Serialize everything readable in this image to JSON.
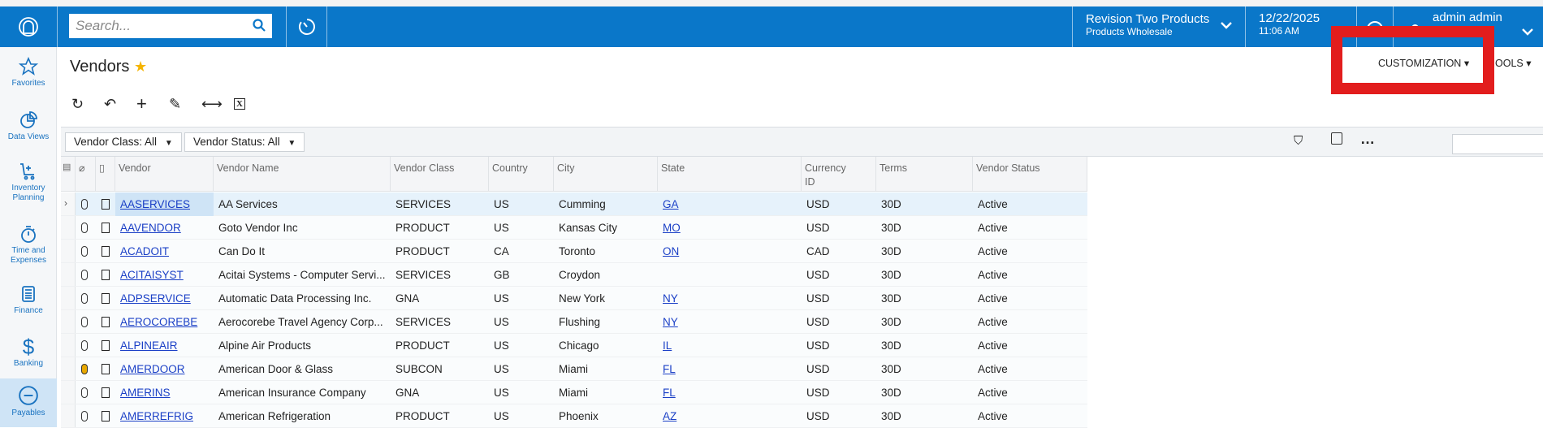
{
  "topbar": {
    "search_placeholder": "Search...",
    "company": "Revision Two Products",
    "branch": "Products Wholesale",
    "date": "12/22/2025",
    "time": "11:06 AM",
    "user": "admin admin"
  },
  "sidebar": {
    "items": [
      {
        "label": "Favorites",
        "icon": "star-icon"
      },
      {
        "label": "Data Views",
        "icon": "pie-chart-icon"
      },
      {
        "label": "Inventory Planning",
        "icon": "cart-icon"
      },
      {
        "label": "Time and Expenses",
        "icon": "stopwatch-icon"
      },
      {
        "label": "Finance",
        "icon": "calculator-icon"
      },
      {
        "label": "Banking",
        "icon": "dollar-icon"
      },
      {
        "label": "Payables",
        "icon": "minus-circle-icon"
      }
    ],
    "active": "Payables"
  },
  "page": {
    "title": "Vendors",
    "customization": "CUSTOMIZATION",
    "tools": "OOLS"
  },
  "filters": {
    "vendor_class": "Vendor Class: All",
    "vendor_status": "Vendor Status: All"
  },
  "grid": {
    "columns": [
      "Vendor",
      "Vendor Name",
      "Vendor Class",
      "Country",
      "City",
      "State",
      "Currency ID",
      "Terms",
      "Vendor Status"
    ],
    "rows": [
      [
        "AASERVICES",
        "AA Services",
        "SERVICES",
        "US",
        "Cumming",
        "GA",
        "USD",
        "30D",
        "Active"
      ],
      [
        "AAVENDOR",
        "Goto Vendor Inc",
        "PRODUCT",
        "US",
        "Kansas City",
        "MO",
        "USD",
        "30D",
        "Active"
      ],
      [
        "ACADOIT",
        "Can Do It",
        "PRODUCT",
        "CA",
        "Toronto",
        "ON",
        "CAD",
        "30D",
        "Active"
      ],
      [
        "ACITAISYST",
        "Acitai Systems - Computer Servi...",
        "SERVICES",
        "GB",
        "Croydon",
        "",
        "USD",
        "30D",
        "Active"
      ],
      [
        "ADPSERVICE",
        "Automatic Data Processing Inc.",
        "GNA",
        "US",
        "New York",
        "NY",
        "USD",
        "30D",
        "Active"
      ],
      [
        "AEROCOREBE",
        "Aerocorebe Travel Agency Corp...",
        "SERVICES",
        "US",
        "Flushing",
        "NY",
        "USD",
        "30D",
        "Active"
      ],
      [
        "ALPINEAIR",
        "Alpine Air Products",
        "PRODUCT",
        "US",
        "Chicago",
        "IL",
        "USD",
        "30D",
        "Active"
      ],
      [
        "AMERDOOR",
        "American Door & Glass",
        "SUBCON",
        "US",
        "Miami",
        "FL",
        "USD",
        "30D",
        "Active"
      ],
      [
        "AMERINS",
        "American Insurance Company",
        "GNA",
        "US",
        "Miami",
        "FL",
        "USD",
        "30D",
        "Active"
      ],
      [
        "AMERREFRIG",
        "American Refrigeration",
        "PRODUCT",
        "US",
        "Phoenix",
        "AZ",
        "USD",
        "30D",
        "Active"
      ]
    ]
  },
  "colors": {
    "brand": "#0a77c9",
    "highlight": "#e21d1d",
    "link": "#1a3fc6",
    "star": "#f5b400"
  }
}
